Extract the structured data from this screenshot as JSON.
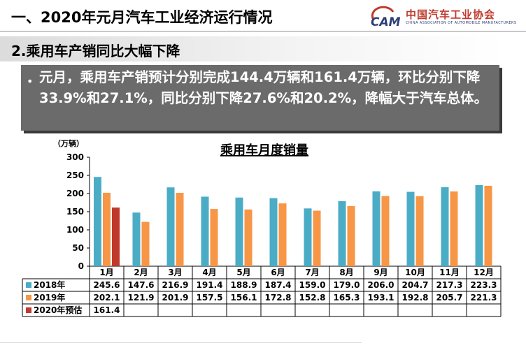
{
  "header": {
    "title": "一、2020年元月汽车工业经济运行情况",
    "logo": {
      "monogram": "CAM",
      "org_cn": "中国汽车工业协会",
      "org_en": "CHINA ASSOCIATION OF AUTOMOBILE MANUFACTURERS"
    }
  },
  "section": {
    "subtitle": "2.乘用车产销同比大幅下降",
    "bullet": "元月，乘用车产销预计分别完成144.4万辆和161.4万辆，环比分别下降33.9%和27.1%，同比分别下降27.6%和20.2%，降幅大于汽车总体。"
  },
  "colors": {
    "series_2018": "#4bacc6",
    "series_2019": "#f79646",
    "series_2020": "#c0392b",
    "bullet_bg": "#6b6b6b"
  },
  "chart_data": {
    "type": "bar",
    "title": "乘用车月度销量",
    "ylabel": "（万辆）",
    "ylim": [
      0,
      300
    ],
    "yticks": [
      0,
      50,
      100,
      150,
      200,
      250,
      300
    ],
    "grid": false,
    "legend": "data-table",
    "categories": [
      "1月",
      "2月",
      "3月",
      "4月",
      "5月",
      "6月",
      "7月",
      "8月",
      "9月",
      "10月",
      "11月",
      "12月"
    ],
    "series": [
      {
        "name": "2018年",
        "values": [
          245.6,
          147.6,
          216.9,
          191.4,
          188.9,
          187.4,
          159.0,
          179.0,
          206.0,
          204.7,
          217.3,
          223.3
        ]
      },
      {
        "name": "2019年",
        "values": [
          202.1,
          121.9,
          201.9,
          157.5,
          156.1,
          172.8,
          152.8,
          165.3,
          193.1,
          192.8,
          205.7,
          221.3
        ]
      },
      {
        "name": "2020年预估",
        "values": [
          161.4,
          null,
          null,
          null,
          null,
          null,
          null,
          null,
          null,
          null,
          null,
          null
        ]
      }
    ]
  }
}
